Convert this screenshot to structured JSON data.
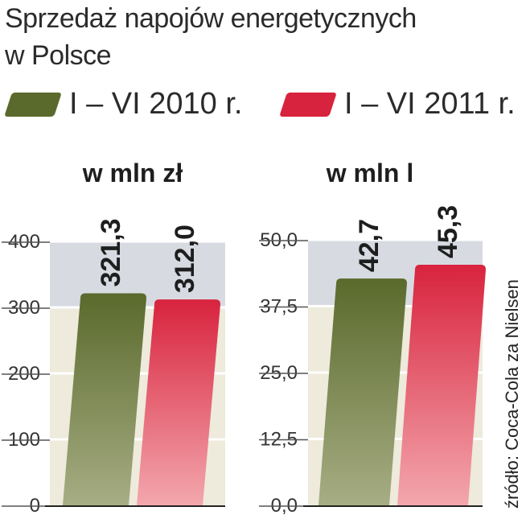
{
  "title_line1": "Sprzedaż napojów energetycznych",
  "title_line2": "w Polsce",
  "legend": [
    {
      "label": "I – VI 2010 r.",
      "color": "#5a6a2c"
    },
    {
      "label": "I – VI 2011 r.",
      "color": "#d8233e"
    }
  ],
  "source": "źródło: Coca-Cola za Nielsen",
  "chart_data": [
    {
      "type": "bar",
      "unit_label": "w mln zł",
      "categories": [
        "I – VI 2010 r.",
        "I – VI 2011 r."
      ],
      "values": [
        321.3,
        312.0
      ],
      "value_labels": [
        "321,3",
        "312,0"
      ],
      "ylim": [
        0,
        400
      ],
      "yticks": [
        0,
        100,
        200,
        300,
        400
      ],
      "ytick_labels": [
        "0",
        "100",
        "200",
        "300",
        "400"
      ]
    },
    {
      "type": "bar",
      "unit_label": "w mln l",
      "categories": [
        "I – VI 2010 r.",
        "I – VI 2011 r."
      ],
      "values": [
        42.7,
        45.3
      ],
      "value_labels": [
        "42,7",
        "45,3"
      ],
      "ylim": [
        0,
        50
      ],
      "yticks": [
        0,
        12.5,
        25,
        37.5,
        50
      ],
      "ytick_labels": [
        "0,0",
        "12,5",
        "25,0",
        "37,5",
        "50,0"
      ]
    }
  ],
  "colors": {
    "green": "#5a6a2c",
    "green_light": "#a7ad84",
    "red": "#d8233e",
    "red_light": "#f3a7ad",
    "plot_bg_top": "#d7dbe1",
    "plot_bg_bottom": "#eeeadc"
  }
}
